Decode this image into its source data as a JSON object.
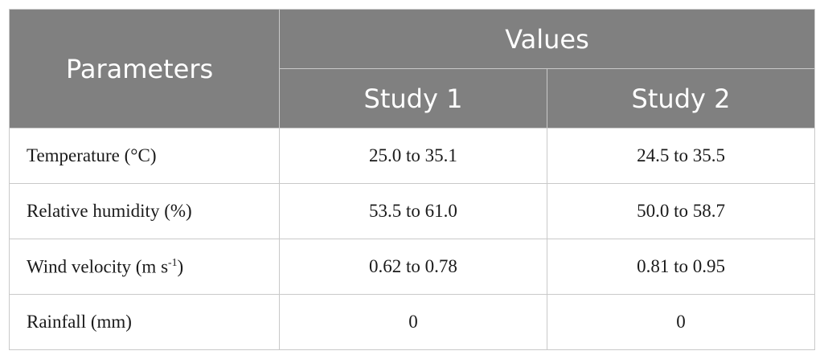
{
  "header": {
    "parameters": "Parameters",
    "values": "Values",
    "study1": "Study 1",
    "study2": "Study 2"
  },
  "rows": [
    {
      "parameter": "Temperature (°C)",
      "study1": "25.0 to 35.1",
      "study2": "24.5 to 35.5"
    },
    {
      "parameter": "Relative humidity (%)",
      "study1": "53.5 to 61.0",
      "study2": "50.0 to 58.7"
    },
    {
      "parameter": "Wind velocity (m s",
      "parameter_sup": "-1",
      "parameter_end": ")",
      "study1": "0.62 to 0.78",
      "study2": "0.81 to 0.95"
    },
    {
      "parameter": "Rainfall (mm)",
      "study1": "0",
      "study2": "0"
    }
  ]
}
